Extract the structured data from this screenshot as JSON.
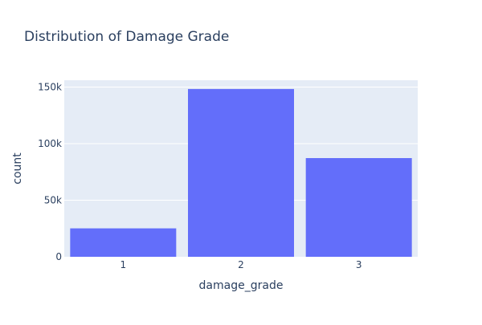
{
  "chart_data": {
    "type": "bar",
    "title": "Distribution of Damage Grade",
    "xlabel": "damage_grade",
    "ylabel": "count",
    "categories": [
      "1",
      "2",
      "3"
    ],
    "values": [
      25124,
      148259,
      87218
    ],
    "ylim": [
      0,
      156000
    ],
    "yticks": [
      0,
      50000,
      100000,
      150000
    ],
    "ytick_labels": [
      "0",
      "50k",
      "100k",
      "150k"
    ],
    "grid": true,
    "bar_color": "#636efa",
    "plot_bgcolor": "#e5ecf6",
    "text_color": "#2a3f5f"
  }
}
